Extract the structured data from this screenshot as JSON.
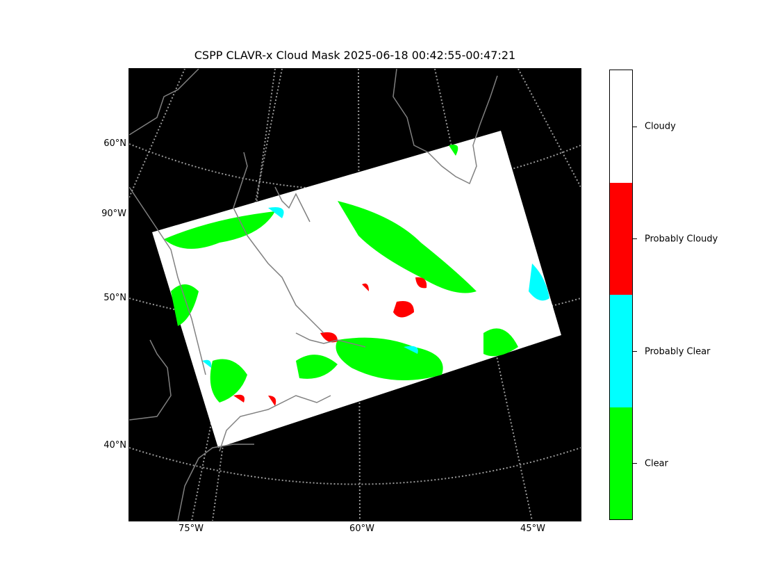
{
  "title": "CSPP CLAVR-x Cloud Mask 2025-06-18 00:42:55-00:47:21",
  "lat_labels": [
    "60°N",
    "90°W",
    "50°N",
    "40°N"
  ],
  "lon_labels": [
    "75°W",
    "60°W",
    "45°W"
  ],
  "colorbar": {
    "categories": [
      {
        "label": "Cloudy",
        "color": "#ffffff"
      },
      {
        "label": "Probably Cloudy",
        "color": "#ff0000"
      },
      {
        "label": "Probably Clear",
        "color": "#00ffff"
      },
      {
        "label": "Clear",
        "color": "#00ff00"
      }
    ]
  },
  "colors": {
    "background": "#000000",
    "coastline": "#808080",
    "graticule": "#aaaaaa"
  }
}
